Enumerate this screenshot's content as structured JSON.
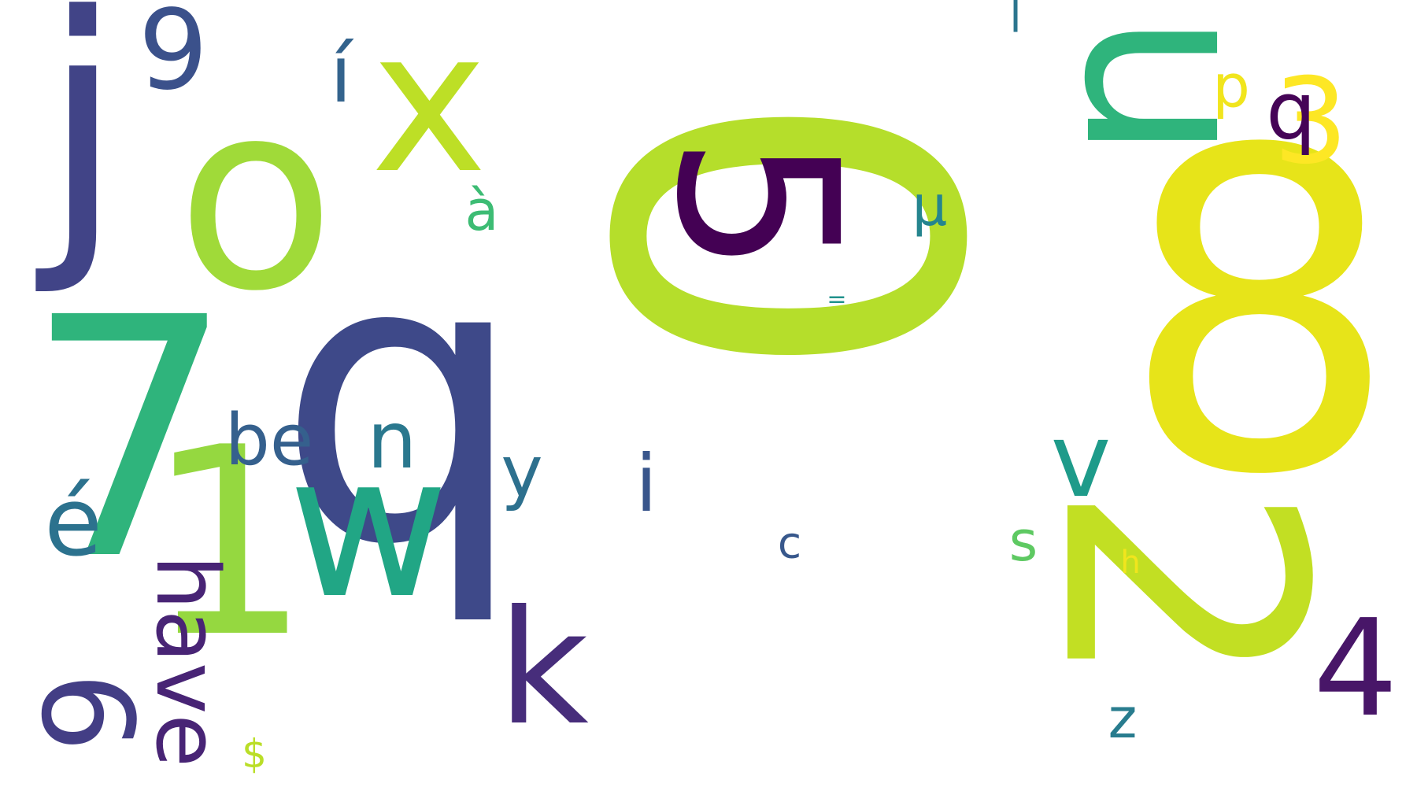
{
  "background": "#ffffff",
  "words": [
    {
      "text": "0",
      "color": "#b5de2b",
      "rot": 90
    },
    {
      "text": "8",
      "color": "#e7e419",
      "rot": 0
    },
    {
      "text": "2",
      "color": "#c2df23",
      "rot": 90
    },
    {
      "text": "q",
      "color": "#3e4989",
      "rot": 0
    },
    {
      "text": "7",
      "color": "#2fb47c",
      "rot": 0
    },
    {
      "text": "o",
      "color": "#a0da39",
      "rot": 0
    },
    {
      "text": "j",
      "color": "#414487",
      "rot": 0
    },
    {
      "text": "u",
      "color": "#2fb47c",
      "rot": 90
    },
    {
      "text": "1",
      "color": "#95d840",
      "rot": 0
    },
    {
      "text": "w",
      "color": "#21a685",
      "rot": 0
    },
    {
      "text": "x",
      "color": "#bddf26",
      "rot": 0
    },
    {
      "text": "5",
      "color": "#440154",
      "rot": 90
    },
    {
      "text": "k",
      "color": "#472d7b",
      "rot": 0
    },
    {
      "text": "4",
      "color": "#481668",
      "rot": 0
    },
    {
      "text": "9",
      "color": "#3b518b",
      "rot": 0
    },
    {
      "text": "6",
      "color": "#433e85",
      "rot": 90
    },
    {
      "text": "have",
      "color": "#482475",
      "rot": 90
    },
    {
      "text": "3",
      "color": "#fde725",
      "rot": 0
    },
    {
      "text": "b",
      "color": "#450457",
      "rot": 180
    },
    {
      "text": "v",
      "color": "#1e9b8a",
      "rot": 0
    },
    {
      "text": "n",
      "color": "#2a788e",
      "rot": 0
    },
    {
      "text": "í",
      "color": "#33638d",
      "rot": 0
    },
    {
      "text": "be",
      "color": "#35608d",
      "rot": 0
    },
    {
      "text": "é",
      "color": "#2c728e",
      "rot": 0
    },
    {
      "text": "i",
      "color": "#39568c",
      "rot": 0
    },
    {
      "text": "p",
      "color": "#f1e51d",
      "rot": 0
    },
    {
      "text": "y",
      "color": "#2d708e",
      "rot": 0
    },
    {
      "text": "à",
      "color": "#3dbc74",
      "rot": 0
    },
    {
      "text": "µ",
      "color": "#25858e",
      "rot": 0
    },
    {
      "text": "z",
      "color": "#287c8e",
      "rot": 0
    },
    {
      "text": "s",
      "color": "#5ec962",
      "rot": 0
    },
    {
      "text": "c",
      "color": "#38588c",
      "rot": 0
    },
    {
      "text": "l",
      "color": "#2b758e",
      "rot": 0
    },
    {
      "text": "$",
      "color": "#bade28",
      "rot": 0
    },
    {
      "text": "h",
      "color": "#f1e51d",
      "rot": 0
    },
    {
      "text": "=",
      "color": "#20928c",
      "rot": 0
    }
  ]
}
